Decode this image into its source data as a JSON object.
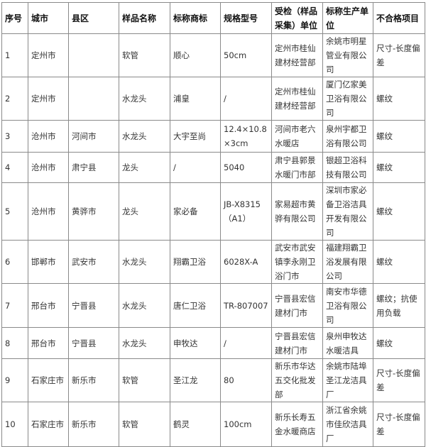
{
  "headers": [
    "序号",
    "城市",
    "县区",
    "样品名称",
    "标称商标",
    "规格型号",
    "受检（样品采集）单位",
    "标称生产单位",
    "不合格项目"
  ],
  "rows": [
    [
      "1",
      "定州市",
      "",
      "软管",
      "顺心",
      "50cm",
      "定州市桂仙建材经营部",
      "余姚市明星管业有限公司",
      "尺寸-长度偏差"
    ],
    [
      "2",
      "定州市",
      "",
      "水龙头",
      "浦皇",
      "/",
      "定州市桂仙建材经营部",
      "厦门亿家美卫浴有限公司",
      "螺纹"
    ],
    [
      "3",
      "沧州市",
      "河间市",
      "水龙头",
      "大宇至尚",
      "12.4×10.8×3cm",
      "河间市老六水暖店",
      "泉州宇都卫浴有限公司",
      "螺纹"
    ],
    [
      "4",
      "沧州市",
      "肃宁县",
      "龙头",
      "/",
      "5040",
      "肃宁县郭景水暖门市部",
      "银超卫浴科技有限公司",
      "螺纹"
    ],
    [
      "5",
      "沧州市",
      "黄骅市",
      "龙头",
      "家必备",
      "JB-X8315（A1）",
      "家易超市黄骅有限公司",
      "深圳市家必备卫浴洁具开发有限公司",
      "螺纹"
    ],
    [
      "6",
      "邯郸市",
      "武安市",
      "水龙头",
      "翔霸卫浴",
      "6028X-A",
      "武安市武安镇李永刚卫浴门市",
      "福建翔霸卫浴发展有限公司",
      "螺纹"
    ],
    [
      "7",
      "邢台市",
      "宁晋县",
      "水龙头",
      "唐仁卫浴",
      "TR-807007",
      "宁晋县宏信建材门市",
      "南安市华德卫浴有限公司",
      "螺纹；抗使用负载"
    ],
    [
      "8",
      "邢台市",
      "宁晋县",
      "水龙头",
      "申牧达",
      "/",
      "宁晋县宏信建材门市",
      "泉州申牧达水暖洁具",
      "螺纹"
    ],
    [
      "9",
      "石家庄市",
      "新乐市",
      "软管",
      "圣江龙",
      "80",
      "新乐市华达五交化批发部",
      "余姚市陆埠圣江龙洁具厂",
      "尺寸-长度偏差"
    ],
    [
      "10",
      "石家庄市",
      "新乐市",
      "软管",
      "鹤灵",
      "100cm",
      "新乐长寿五金水暖商店",
      "浙江省余姚市佳欣洁具厂",
      "尺寸-长度偏差"
    ]
  ]
}
